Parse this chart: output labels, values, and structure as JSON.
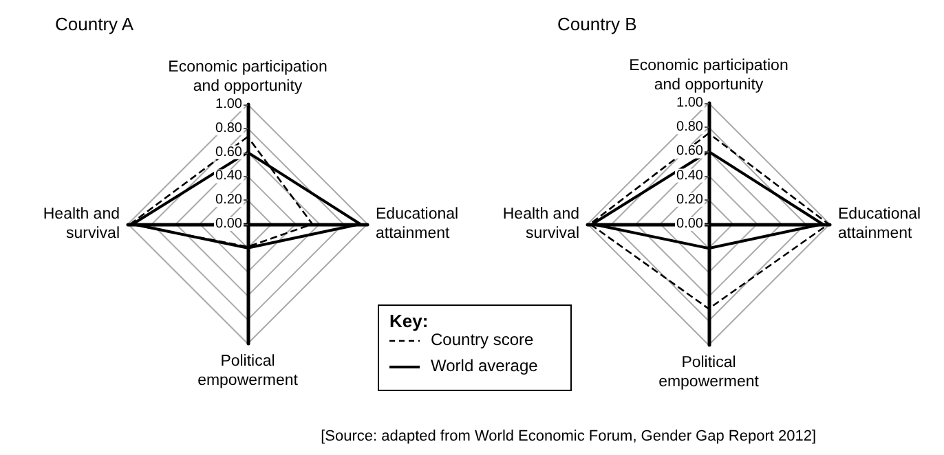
{
  "chart_data": [
    {
      "type": "radar",
      "title": "Country A",
      "categories": [
        "Economic participation\nand opportunity",
        "Educational\nattainment",
        "Political\nempowerment",
        "Health and\nsurvival"
      ],
      "series": [
        {
          "name": "Country score",
          "color": "#000000",
          "line_style": "dashed",
          "values": [
            0.73,
            0.54,
            0.19,
            0.98
          ]
        },
        {
          "name": "World average",
          "color": "#000000",
          "line_style": "solid",
          "values": [
            0.6,
            0.94,
            0.2,
            0.96
          ]
        }
      ],
      "ylim": [
        0,
        1
      ],
      "yticks": [
        {
          "value": 0,
          "label": "0.00"
        },
        {
          "value": 0.2,
          "label": "0.20"
        },
        {
          "value": 0.4,
          "label": "0.40"
        },
        {
          "value": 0.6,
          "label": "0.60"
        },
        {
          "value": 0.8,
          "label": "0.80"
        },
        {
          "value": 1,
          "label": "1.00"
        }
      ],
      "legend": "bottom",
      "legend_title": "Key:"
    },
    {
      "type": "radar",
      "title": "Country B",
      "categories": [
        "Economic participation\nand opportunity",
        "Educational\nattainment",
        "Political\nempowerment",
        "Health and\nsurvival"
      ],
      "series": [
        {
          "color": "#000000",
          "line_style": "dashed",
          "values": [
            0.75,
            0.99,
            0.7,
            0.98
          ]
        },
        {
          "color": "#000000",
          "line_style": "solid",
          "values": [
            0.6,
            0.94,
            0.2,
            0.96
          ]
        }
      ],
      "ylim": [
        0,
        1
      ],
      "yticks": [
        {
          "value": 0,
          "label": "0.00"
        },
        {
          "value": 0.2,
          "label": "0.20"
        },
        {
          "value": 0.4,
          "label": "0.40"
        },
        {
          "value": 0.6,
          "label": "0.60"
        },
        {
          "value": 0.8,
          "label": "0.80"
        },
        {
          "value": 1,
          "label": "1.00"
        }
      ],
      "annotations": [
        "[Source: adapted from World Economic Forum, Gender Gap Report 2012]"
      ]
    }
  ]
}
